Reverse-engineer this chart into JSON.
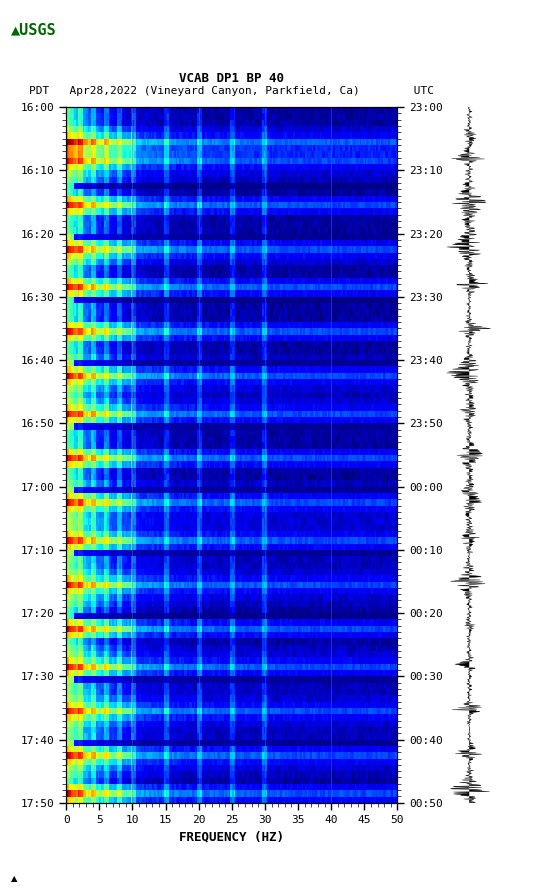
{
  "title_line1": "VCAB DP1 BP 40",
  "title_line2": "PDT   Apr28,2022 (Vineyard Canyon, Parkfield, Ca)        UTC",
  "xlabel": "FREQUENCY (HZ)",
  "freq_min": 0,
  "freq_max": 50,
  "left_ytick_labels": [
    "16:00",
    "16:10",
    "16:20",
    "16:30",
    "16:40",
    "16:50",
    "17:00",
    "17:10",
    "17:20",
    "17:30",
    "17:40",
    "17:50"
  ],
  "right_ytick_labels": [
    "23:00",
    "23:10",
    "23:20",
    "23:30",
    "23:40",
    "23:50",
    "00:00",
    "00:10",
    "00:20",
    "00:30",
    "00:40",
    "00:50"
  ],
  "background_color": "#ffffff",
  "spectrogram_bg": "#00008B",
  "colormap": "jet",
  "n_time": 110,
  "n_freq": 200,
  "seed": 42,
  "event_times": [
    5,
    8,
    15,
    22,
    28,
    35,
    42,
    48,
    55,
    62,
    68,
    75,
    82,
    88,
    95,
    102,
    108
  ],
  "quiet_times": [
    12,
    20,
    30,
    40,
    50,
    60,
    70,
    80,
    90,
    100
  ],
  "harmonic_freqs": [
    2,
    4,
    6,
    8,
    10,
    15,
    20,
    25,
    30
  ],
  "vgrid_freqs": [
    10,
    20,
    30,
    40
  ]
}
